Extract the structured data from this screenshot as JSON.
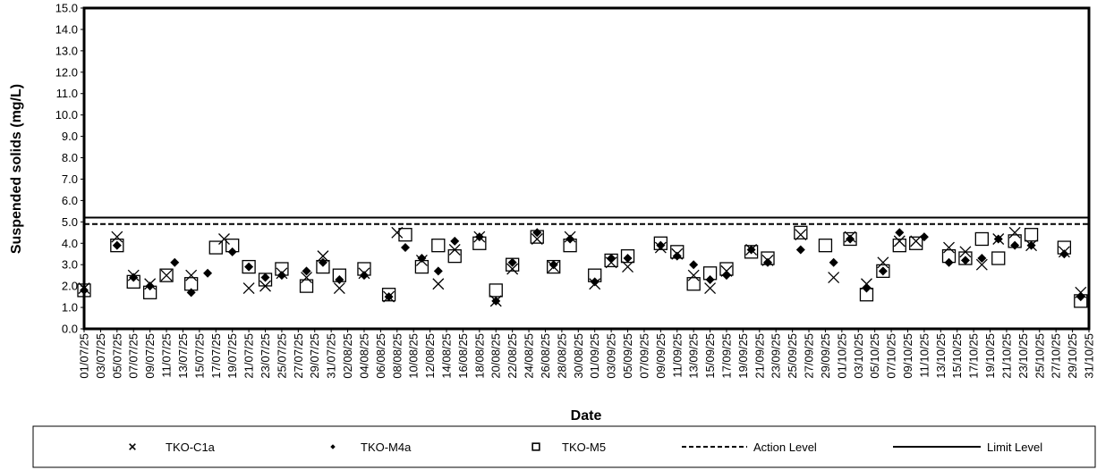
{
  "chart_data": {
    "type": "scatter",
    "xlabel": "Date",
    "ylabel": "Suspended solids (mg/L)",
    "ylim": [
      0.0,
      15.0
    ],
    "ystep": 1.0,
    "xlim": [
      "01/07/25",
      "31/10/25"
    ],
    "x_tick_labels": [
      "01/07/25",
      "03/07/25",
      "05/07/25",
      "07/07/25",
      "09/07/25",
      "11/07/25",
      "13/07/25",
      "15/07/25",
      "17/07/25",
      "19/07/25",
      "21/07/25",
      "23/07/25",
      "25/07/25",
      "27/07/25",
      "29/07/25",
      "31/07/25",
      "02/08/25",
      "04/08/25",
      "06/08/25",
      "08/08/25",
      "10/08/25",
      "12/08/25",
      "14/08/25",
      "16/08/25",
      "18/08/25",
      "20/08/25",
      "22/08/25",
      "24/08/25",
      "26/08/25",
      "28/08/25",
      "30/08/25",
      "01/09/25",
      "03/09/25",
      "05/09/25",
      "07/09/25",
      "09/09/25",
      "11/09/25",
      "13/09/25",
      "15/09/25",
      "17/09/25",
      "19/09/25",
      "21/09/25",
      "23/09/25",
      "25/09/25",
      "27/09/25",
      "29/09/25",
      "01/10/25",
      "03/10/25",
      "05/10/25",
      "07/10/25",
      "09/10/25",
      "11/10/25",
      "13/10/25",
      "15/10/25",
      "17/10/25",
      "19/10/25",
      "21/10/25",
      "23/10/25",
      "25/10/25",
      "27/10/25",
      "29/10/25",
      "31/10/25"
    ],
    "grid": false,
    "legend_position": "bottom",
    "series": [
      {
        "name": "TKO-C1a",
        "marker": "x",
        "x": [
          "01/07/25",
          "05/07/25",
          "07/07/25",
          "09/07/25",
          "11/07/25",
          "14/07/25",
          "18/07/25",
          "21/07/25",
          "23/07/25",
          "25/07/25",
          "28/07/25",
          "30/07/25",
          "01/08/25",
          "04/08/25",
          "07/08/25",
          "08/08/25",
          "11/08/25",
          "13/08/25",
          "15/08/25",
          "18/08/25",
          "20/08/25",
          "22/08/25",
          "25/08/25",
          "27/08/25",
          "29/08/25",
          "01/09/25",
          "03/09/25",
          "05/09/25",
          "09/09/25",
          "11/09/25",
          "13/09/25",
          "15/09/25",
          "17/09/25",
          "20/09/25",
          "22/09/25",
          "26/09/25",
          "30/09/25",
          "02/10/25",
          "04/10/25",
          "06/10/25",
          "08/10/25",
          "10/10/25",
          "14/10/25",
          "16/10/25",
          "18/10/25",
          "20/10/25",
          "22/10/25",
          "24/10/25",
          "28/10/25",
          "30/10/25"
        ],
        "values": [
          1.9,
          4.3,
          2.5,
          2.1,
          2.5,
          2.5,
          4.2,
          1.9,
          2.0,
          2.6,
          2.4,
          3.4,
          1.9,
          2.6,
          1.5,
          4.5,
          3.2,
          2.1,
          3.7,
          4.3,
          1.3,
          2.8,
          4.2,
          2.9,
          4.3,
          2.1,
          3.1,
          2.9,
          3.8,
          3.5,
          2.5,
          1.9,
          2.7,
          3.7,
          3.2,
          4.4,
          2.4,
          4.3,
          2.1,
          3.1,
          4.1,
          4.1,
          3.8,
          3.6,
          3.0,
          4.2,
          4.5,
          3.9,
          3.6,
          1.7
        ]
      },
      {
        "name": "TKO-M4a",
        "marker": "diamond",
        "x": [
          "01/07/25",
          "05/07/25",
          "07/07/25",
          "09/07/25",
          "12/07/25",
          "14/07/25",
          "16/07/25",
          "19/07/25",
          "21/07/25",
          "23/07/25",
          "25/07/25",
          "28/07/25",
          "30/07/25",
          "01/08/25",
          "04/08/25",
          "07/08/25",
          "09/08/25",
          "11/08/25",
          "13/08/25",
          "15/08/25",
          "18/08/25",
          "20/08/25",
          "22/08/25",
          "25/08/25",
          "27/08/25",
          "29/08/25",
          "01/09/25",
          "03/09/25",
          "05/09/25",
          "09/09/25",
          "11/09/25",
          "13/09/25",
          "15/09/25",
          "17/09/25",
          "20/09/25",
          "22/09/25",
          "26/09/25",
          "30/09/25",
          "02/10/25",
          "04/10/25",
          "06/10/25",
          "08/10/25",
          "11/10/25",
          "14/10/25",
          "16/10/25",
          "18/10/25",
          "20/10/25",
          "22/10/25",
          "24/10/25",
          "28/10/25",
          "30/10/25"
        ],
        "values": [
          1.8,
          3.9,
          2.4,
          2.0,
          3.1,
          1.7,
          2.6,
          3.6,
          2.9,
          2.4,
          2.5,
          2.7,
          3.1,
          2.3,
          2.5,
          1.5,
          3.8,
          3.3,
          2.7,
          4.1,
          4.3,
          1.3,
          3.1,
          4.5,
          3.0,
          4.2,
          2.2,
          3.3,
          3.3,
          3.9,
          3.4,
          3.0,
          2.3,
          2.5,
          3.7,
          3.1,
          3.7,
          3.1,
          4.2,
          1.9,
          2.7,
          4.5,
          4.3,
          3.1,
          3.2,
          3.3,
          4.2,
          3.9,
          3.9,
          3.5,
          1.5
        ]
      },
      {
        "name": "TKO-M5",
        "marker": "square",
        "x": [
          "01/07/25",
          "05/07/25",
          "07/07/25",
          "09/07/25",
          "11/07/25",
          "14/07/25",
          "17/07/25",
          "19/07/25",
          "21/07/25",
          "23/07/25",
          "25/07/25",
          "28/07/25",
          "30/07/25",
          "01/08/25",
          "04/08/25",
          "07/08/25",
          "09/08/25",
          "11/08/25",
          "13/08/25",
          "15/08/25",
          "18/08/25",
          "20/08/25",
          "22/08/25",
          "25/08/25",
          "27/08/25",
          "29/08/25",
          "01/09/25",
          "03/09/25",
          "05/09/25",
          "09/09/25",
          "11/09/25",
          "13/09/25",
          "15/09/25",
          "17/09/25",
          "20/09/25",
          "22/09/25",
          "26/09/25",
          "29/09/25",
          "02/10/25",
          "04/10/25",
          "06/10/25",
          "08/10/25",
          "10/10/25",
          "14/10/25",
          "16/10/25",
          "18/10/25",
          "20/10/25",
          "22/10/25",
          "24/10/25",
          "28/10/25",
          "30/10/25"
        ],
        "values": [
          1.8,
          3.9,
          2.2,
          1.7,
          2.5,
          2.1,
          3.8,
          3.9,
          2.9,
          2.3,
          2.8,
          2.0,
          2.9,
          2.5,
          2.8,
          1.6,
          4.4,
          2.9,
          3.9,
          3.4,
          4.0,
          1.8,
          3.0,
          4.3,
          2.9,
          3.9,
          2.5,
          3.2,
          3.4,
          4.0,
          3.6,
          2.1,
          2.6,
          2.8,
          3.6,
          3.3,
          4.5,
          3.9,
          4.2,
          1.6,
          2.7,
          3.9,
          4.0,
          3.4,
          3.3,
          4.2,
          3.3,
          4.1,
          4.4,
          3.8,
          1.3
        ]
      },
      {
        "name": "Action Level",
        "line": "dashed",
        "value": 4.9
      },
      {
        "name": "Limit Level",
        "line": "solid",
        "value": 5.2
      }
    ]
  }
}
